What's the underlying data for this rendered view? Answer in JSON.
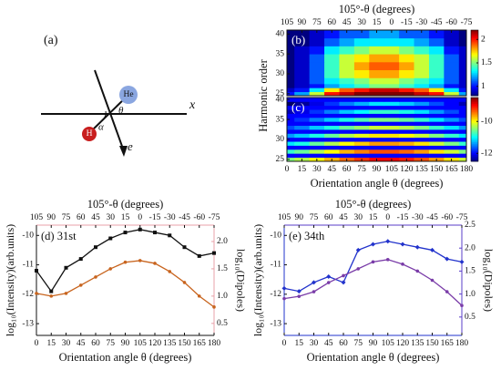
{
  "diagram": {
    "label": "(a)",
    "he": "He",
    "h": "H",
    "x_axis": "x",
    "theta": "θ",
    "alpha": "α",
    "field": "e⃗"
  },
  "chart_data": [
    {
      "type": "heatmap",
      "label": "(b)",
      "x2label": "105°-θ (degrees)",
      "ylabel": "Harmonic order",
      "x": [
        0,
        15,
        30,
        45,
        60,
        75,
        90,
        105,
        120,
        135,
        150,
        165,
        180
      ],
      "y": [
        25,
        26,
        27,
        28,
        30,
        32,
        34,
        36,
        38,
        40
      ],
      "z": [
        [
          1.0,
          1.2,
          1.6,
          2.0,
          2.1,
          2.2,
          2.2,
          2.2,
          2.2,
          2.1,
          2.0,
          1.6,
          1.2
        ],
        [
          0.9,
          1.0,
          1.3,
          1.7,
          1.9,
          2.0,
          2.1,
          2.1,
          2.0,
          1.9,
          1.7,
          1.3,
          1.0
        ],
        [
          0.8,
          0.9,
          1.0,
          1.2,
          1.3,
          1.4,
          1.5,
          1.5,
          1.4,
          1.3,
          1.2,
          1.0,
          0.9
        ],
        [
          0.8,
          0.9,
          1.1,
          1.3,
          1.4,
          1.5,
          1.6,
          1.6,
          1.5,
          1.4,
          1.3,
          1.1,
          0.9
        ],
        [
          0.8,
          0.9,
          1.1,
          1.4,
          1.6,
          1.7,
          1.8,
          1.8,
          1.7,
          1.6,
          1.4,
          1.1,
          0.9
        ],
        [
          0.8,
          0.9,
          1.1,
          1.4,
          1.6,
          1.8,
          1.9,
          1.9,
          1.8,
          1.6,
          1.4,
          1.1,
          0.9
        ],
        [
          0.8,
          0.9,
          1.1,
          1.4,
          1.6,
          1.7,
          1.8,
          1.8,
          1.7,
          1.6,
          1.4,
          1.1,
          0.9
        ],
        [
          0.8,
          0.9,
          1.0,
          1.3,
          1.4,
          1.5,
          1.6,
          1.6,
          1.5,
          1.4,
          1.3,
          1.0,
          0.9
        ],
        [
          0.8,
          0.8,
          0.9,
          1.1,
          1.2,
          1.3,
          1.3,
          1.3,
          1.3,
          1.2,
          1.1,
          0.9,
          0.8
        ],
        [
          0.8,
          0.8,
          0.9,
          1.0,
          1.1,
          1.1,
          1.2,
          1.2,
          1.1,
          1.1,
          1.0,
          0.9,
          0.8
        ]
      ],
      "xlim": [
        0,
        180
      ],
      "ylim": [
        24.5,
        41
      ],
      "yticks": [
        25,
        30,
        35,
        40
      ],
      "x2lim": [
        105,
        -75
      ],
      "x2ticks": [
        105,
        90,
        75,
        60,
        45,
        30,
        15,
        0,
        -15,
        -30,
        -45,
        -60,
        -75
      ],
      "zlim": [
        0.8,
        2.2
      ],
      "zticks": [
        1,
        1.5,
        2
      ],
      "colormap": "jet"
    },
    {
      "type": "heatmap",
      "label": "(c)",
      "xlabel": "Orientation angle θ (degrees)",
      "x": [
        0,
        15,
        30,
        45,
        60,
        75,
        90,
        105,
        120,
        135,
        150,
        165,
        180
      ],
      "y": [
        25,
        26,
        27,
        28,
        29,
        30,
        31,
        32,
        33,
        34,
        35,
        36,
        37,
        38,
        39,
        40
      ],
      "z": [
        [
          -10.5,
          -10.3,
          -10.0,
          -9.7,
          -9.4,
          -9.2,
          -9.0,
          -9.0,
          -9.1,
          -9.3,
          -9.6,
          -9.9,
          -10.2
        ],
        [
          -12,
          -12,
          -12,
          -12,
          -12,
          -12,
          -12,
          -12,
          -12,
          -12,
          -12,
          -12,
          -12
        ],
        [
          -10.8,
          -10.6,
          -10.3,
          -10.0,
          -9.7,
          -9.5,
          -9.3,
          -9.3,
          -9.4,
          -9.6,
          -9.9,
          -10.2,
          -10.5
        ],
        [
          -12,
          -12,
          -12,
          -12,
          -12,
          -12,
          -12,
          -12,
          -12,
          -12,
          -12,
          -12,
          -12
        ],
        [
          -11.1,
          -10.9,
          -10.6,
          -10.3,
          -10.0,
          -9.8,
          -9.6,
          -9.6,
          -9.7,
          -9.9,
          -10.2,
          -10.5,
          -10.8
        ],
        [
          -12,
          -12,
          -12,
          -12,
          -12,
          -12,
          -12,
          -12,
          -12,
          -12,
          -12,
          -12,
          -12
        ],
        [
          -11.4,
          -11.2,
          -10.9,
          -10.6,
          -10.3,
          -10.1,
          -9.9,
          -9.9,
          -10.0,
          -10.2,
          -10.5,
          -10.8,
          -11.1
        ],
        [
          -12,
          -12,
          -12,
          -12,
          -12,
          -12,
          -12,
          -12,
          -12,
          -12,
          -12,
          -12,
          -12
        ],
        [
          -11.7,
          -11.5,
          -11.2,
          -10.9,
          -10.6,
          -10.4,
          -10.2,
          -10.2,
          -10.3,
          -10.5,
          -10.8,
          -11.1,
          -11.4
        ],
        [
          -12,
          -12,
          -12,
          -12,
          -12,
          -12,
          -12,
          -12,
          -12,
          -12,
          -12,
          -12,
          -12
        ],
        [
          -12.0,
          -11.8,
          -11.5,
          -11.2,
          -10.9,
          -10.7,
          -10.5,
          -10.5,
          -10.6,
          -10.8,
          -11.1,
          -11.4,
          -11.7
        ],
        [
          -12,
          -12,
          -12,
          -12,
          -12,
          -12,
          -12,
          -12,
          -12,
          -12,
          -12,
          -12,
          -12
        ],
        [
          -12.3,
          -12.1,
          -11.8,
          -11.5,
          -11.2,
          -11.0,
          -10.8,
          -10.8,
          -10.9,
          -11.1,
          -11.4,
          -11.7,
          -12.0
        ],
        [
          -12,
          -12,
          -12,
          -12,
          -12,
          -12,
          -12,
          -12,
          -12,
          -12,
          -12,
          -12,
          -12
        ],
        [
          -12.6,
          -12.4,
          -12.1,
          -11.8,
          -11.5,
          -11.3,
          -11.1,
          -11.1,
          -11.2,
          -11.4,
          -11.7,
          -12.0,
          -12.3
        ],
        [
          -12,
          -12,
          -12,
          -12,
          -12,
          -12,
          -12,
          -12,
          -12,
          -12,
          -12,
          -12,
          -12
        ]
      ],
      "xlim": [
        0,
        180
      ],
      "ylim": [
        24.5,
        40.5
      ],
      "xticks": [
        0,
        15,
        30,
        45,
        60,
        75,
        90,
        105,
        120,
        135,
        150,
        165,
        180
      ],
      "yticks": [
        25,
        30,
        35,
        40
      ],
      "zlim": [
        -12.5,
        -8.5
      ],
      "zticks": [
        -10,
        -12
      ],
      "colormap": "jet"
    },
    {
      "type": "line",
      "label": "(d) 31st",
      "x2label": "105°-θ (degrees)",
      "xlabel": "Orientation angle θ (degrees)",
      "ylabel": "log₁₀(Intensity)(arb.units)",
      "y2label": "log₁₀(Dipoles)",
      "frame_color": "#e8a0a8",
      "x": [
        0,
        15,
        30,
        45,
        60,
        75,
        90,
        105,
        120,
        135,
        150,
        165,
        180
      ],
      "series": [
        {
          "color": "#111111",
          "marker": "square",
          "values": [
            -11.2,
            -11.9,
            -11.1,
            -10.8,
            -10.4,
            -10.1,
            -9.9,
            -9.8,
            -9.9,
            -10.0,
            -10.4,
            -10.7,
            -10.6
          ]
        },
        {
          "color": "#c8641e",
          "marker": "circle",
          "axis": "y2",
          "values": [
            1.05,
            1.0,
            1.05,
            1.2,
            1.35,
            1.5,
            1.62,
            1.65,
            1.6,
            1.45,
            1.25,
            1.0,
            0.8
          ]
        }
      ],
      "xlim": [
        0,
        180
      ],
      "xticks": [
        0,
        15,
        30,
        45,
        60,
        75,
        90,
        105,
        120,
        135,
        150,
        165,
        180
      ],
      "x2lim": [
        105,
        -75
      ],
      "x2ticks": [
        105,
        90,
        75,
        60,
        45,
        30,
        15,
        0,
        -15,
        -30,
        -45,
        -60,
        -75
      ],
      "ylim": [
        -13.4,
        -9.65
      ],
      "yticks": [
        -13,
        -12,
        -11,
        -10
      ],
      "y2lim": [
        0.28,
        2.3
      ],
      "y2ticks": [
        {
          "value": 0.5,
          "label": "0.5"
        },
        {
          "value": 1,
          "label": "1.0"
        },
        {
          "value": 1.5,
          "label": "1.5"
        },
        {
          "value": 2,
          "label": "2.0"
        }
      ]
    },
    {
      "type": "line",
      "label": "(e) 34th",
      "x2label": "105°-θ (degrees)",
      "xlabel": "Orientation angle θ (degrees)",
      "ylabel": "log₁₀(Intensity)(arb.units)",
      "y2label": "log₁₀(Dipoles)",
      "frame_color": "#5a3cc8",
      "x": [
        0,
        15,
        30,
        45,
        60,
        75,
        90,
        105,
        120,
        135,
        150,
        165,
        180
      ],
      "series": [
        {
          "color": "#2233cc",
          "marker": "diamond",
          "values": [
            -11.8,
            -11.9,
            -11.6,
            -11.4,
            -11.6,
            -10.5,
            -10.3,
            -10.2,
            -10.3,
            -10.4,
            -10.5,
            -10.8,
            -10.9
          ]
        },
        {
          "color": "#7a3ca8",
          "marker": "circle",
          "axis": "y2",
          "values": [
            0.9,
            0.95,
            1.05,
            1.25,
            1.4,
            1.55,
            1.7,
            1.75,
            1.65,
            1.5,
            1.3,
            1.05,
            0.75
          ]
        }
      ],
      "xlim": [
        0,
        180
      ],
      "xticks": [
        0,
        15,
        30,
        45,
        60,
        75,
        90,
        105,
        120,
        135,
        150,
        165,
        180
      ],
      "x2lim": [
        105,
        -75
      ],
      "x2ticks": [
        105,
        90,
        75,
        60,
        45,
        30,
        15,
        0,
        -15,
        -30,
        -45,
        -60,
        -75
      ],
      "ylim": [
        -13.4,
        -9.65
      ],
      "yticks": [
        -13,
        -12,
        -11,
        -10
      ],
      "y2lim": [
        0.1,
        2.5
      ],
      "y2ticks": [
        {
          "value": 0.5,
          "label": "0.5"
        },
        {
          "value": 1,
          "label": "1.0"
        },
        {
          "value": 1.5,
          "label": "1.5"
        },
        {
          "value": 2,
          "label": "2.0"
        },
        {
          "value": 2.5,
          "label": "2.5"
        }
      ]
    }
  ]
}
